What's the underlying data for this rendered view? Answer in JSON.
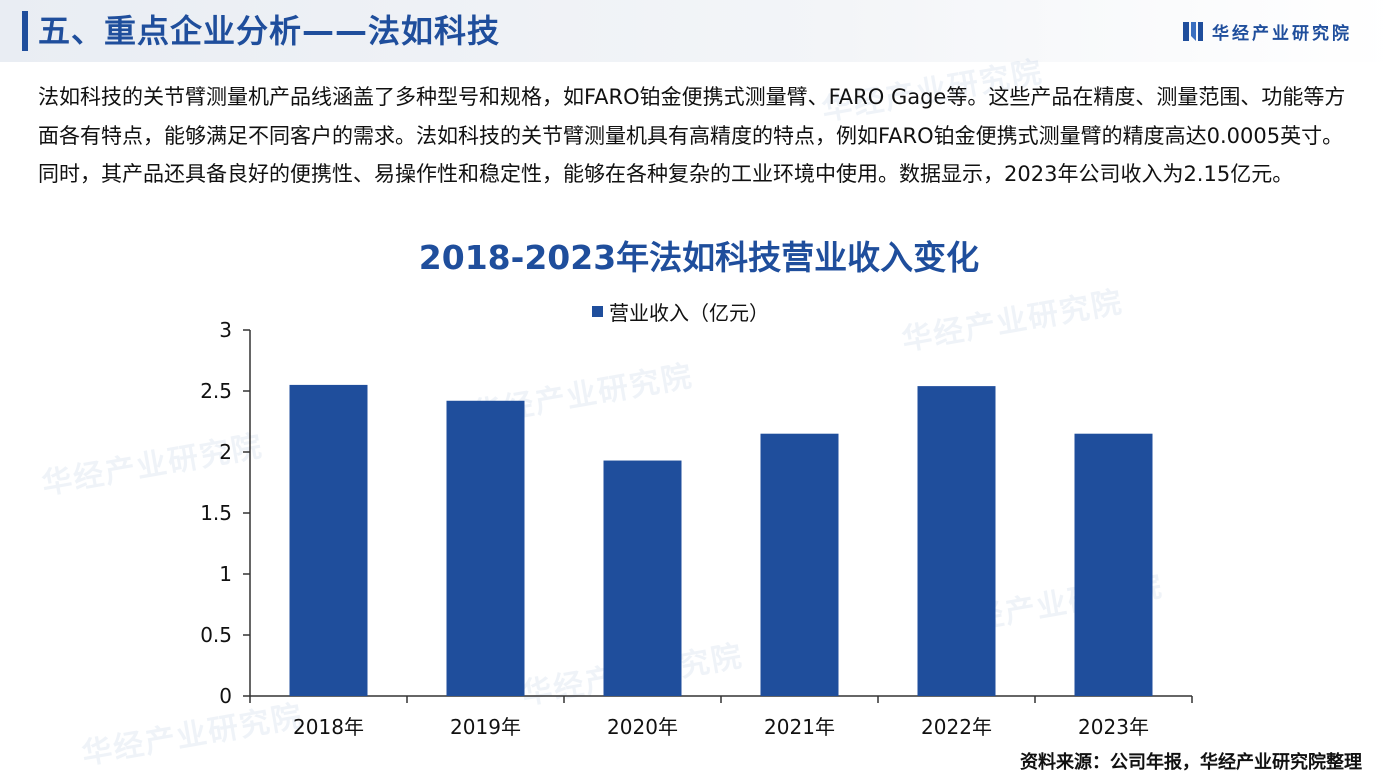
{
  "header": {
    "title": "五、重点企业分析——法如科技",
    "brand": "华经产业研究院"
  },
  "intro": {
    "text": "法如科技的关节臂测量机产品线涵盖了多种型号和规格，如FARO铂金便携式测量臂、FARO Gage等。这些产品在精度、测量范围、功能等方面各有特点，能够满足不同客户的需求。法如科技的关节臂测量机具有高精度的特点，例如FARO铂金便携式测量臂的精度高达0.0005英寸。同时，其产品还具备良好的便携性、易操作性和稳定性，能够在各种复杂的工业环境中使用。数据显示，2023年公司收入为2.15亿元。"
  },
  "watermark": "华经产业研究院",
  "source": "资料来源：公司年报，华经产业研究院整理",
  "colors": {
    "accent": "#1f4e9c",
    "bar": "#1f4e9c"
  },
  "chart_data": {
    "type": "bar",
    "title": "2018-2023年法如科技营业收入变化",
    "categories": [
      "2018年",
      "2019年",
      "2020年",
      "2021年",
      "2022年",
      "2023年"
    ],
    "series": [
      {
        "name": "营业收入（亿元）",
        "values": [
          2.55,
          2.42,
          1.93,
          2.15,
          2.54,
          2.15
        ]
      }
    ],
    "ylim": [
      0,
      3
    ],
    "yticks": [
      "0",
      "0.5",
      "1",
      "1.5",
      "2",
      "2.5",
      "3"
    ],
    "grid": false,
    "legend": "top-center"
  }
}
